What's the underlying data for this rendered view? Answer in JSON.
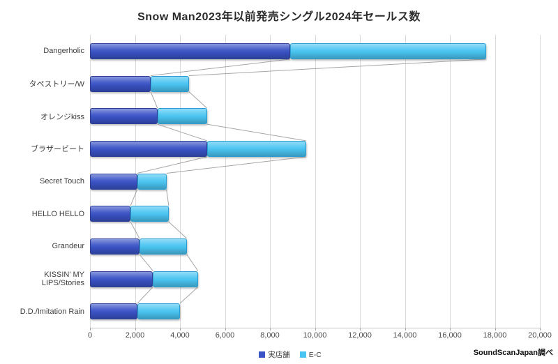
{
  "title": "Snow Man2023年以前発売シングル2024年セールス数",
  "source": "SoundScanJapan調べ",
  "legend": {
    "items": [
      {
        "label": "実店舗",
        "color": "#3a53c6"
      },
      {
        "label": "E-C",
        "color": "#4ac5f2"
      }
    ]
  },
  "chart_data": {
    "type": "bar",
    "orientation": "horizontal",
    "stacked": true,
    "title": "Snow Man2023年以前発売シングル2024年セールス数",
    "xlabel": "",
    "ylabel": "",
    "xlim": [
      0,
      20000
    ],
    "xtick_step": 2000,
    "xtick_labels": [
      "0",
      "2,000",
      "4,000",
      "6,000",
      "8,000",
      "10,000",
      "12,000",
      "14,000",
      "16,000",
      "18,000",
      "20,000"
    ],
    "grid": true,
    "series_lines": true,
    "legend_position": "bottom",
    "categories": [
      "Dangerholic",
      "タペストリー/W",
      "オレンジkiss",
      "ブラザービート",
      "Secret Touch",
      "HELLO HELLO",
      "Grandeur",
      "KISSIN' MY LIPS/Stories",
      "D.D./Imitation Rain"
    ],
    "series": [
      {
        "name": "実店舗",
        "color": "#3a53c6",
        "border_color": "#2e3f96",
        "values": [
          8900,
          2700,
          3000,
          5200,
          2100,
          1800,
          2200,
          2800,
          2100
        ]
      },
      {
        "name": "E-C",
        "color": "#4ac5f2",
        "border_color": "#2a9ed2",
        "values": [
          8700,
          1700,
          2200,
          4400,
          1300,
          1700,
          2100,
          2000,
          1900
        ]
      }
    ]
  },
  "layout_note": ""
}
